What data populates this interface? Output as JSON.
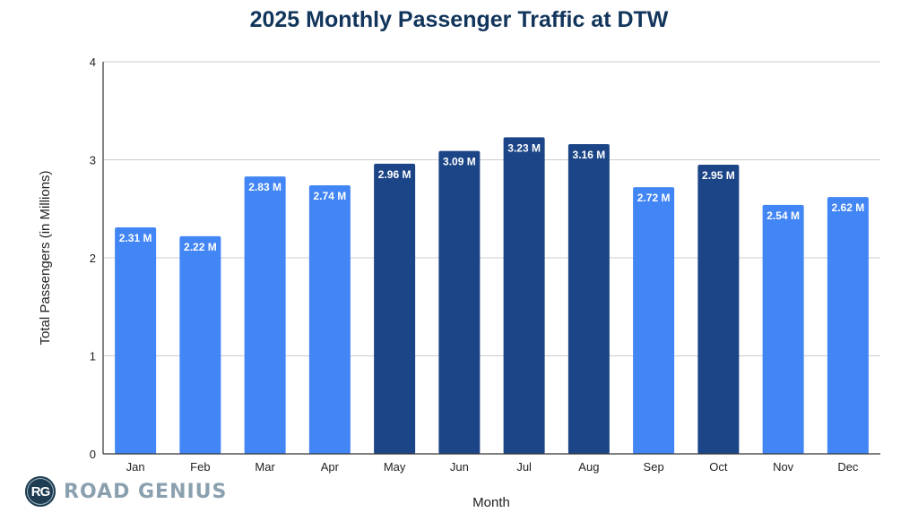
{
  "chart_data": {
    "type": "bar",
    "title": "2025 Monthly Passenger Traffic at DTW",
    "xlabel": "Month",
    "ylabel": "Total Passengers (in Millions)",
    "ylim": [
      0,
      4
    ],
    "yticks": [
      "0",
      "1",
      "2",
      "3",
      "4"
    ],
    "grid": true,
    "categories": [
      "Jan",
      "Feb",
      "Mar",
      "Apr",
      "May",
      "Jun",
      "Jul",
      "Aug",
      "Sep",
      "Oct",
      "Nov",
      "Dec"
    ],
    "values": [
      2.31,
      2.22,
      2.83,
      2.74,
      2.96,
      3.09,
      3.23,
      3.16,
      2.72,
      2.95,
      2.54,
      2.62
    ],
    "data_labels": [
      "2.31 M",
      "2.22 M",
      "2.83 M",
      "2.74 M",
      "2.96 M",
      "3.09 M",
      "3.23 M",
      "3.16 M",
      "2.72 M",
      "2.95 M",
      "2.54 M",
      "2.62 M"
    ],
    "highlighted": [
      false,
      false,
      false,
      false,
      true,
      true,
      true,
      true,
      false,
      true,
      false,
      false
    ],
    "colors": {
      "default": "#4285f4",
      "highlight": "#1c4587"
    }
  },
  "branding": {
    "badge": "RG",
    "name": "ROAD GENIUS"
  }
}
